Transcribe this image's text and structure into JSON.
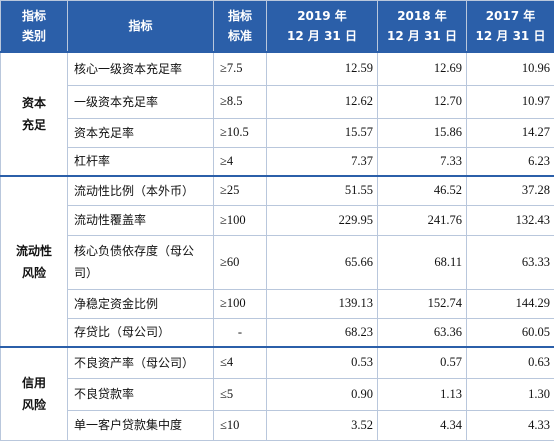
{
  "table": {
    "header": [
      "指标\n类别",
      "指标",
      "指标\n标准",
      "2019 年\n12 月 31 日",
      "2018 年\n12 月 31 日",
      "2017 年\n12 月 31 日"
    ],
    "groups": [
      {
        "label": "资本\n充足",
        "rows": [
          [
            "核心一级资本充足率",
            "≥7.5",
            "12.59",
            "12.69",
            "10.96"
          ],
          [
            "一级资本充足率",
            "≥8.5",
            "12.62",
            "12.70",
            "10.97"
          ],
          [
            "资本充足率",
            "≥10.5",
            "15.57",
            "15.86",
            "14.27"
          ],
          [
            "杠杆率",
            "≥4",
            "7.37",
            "7.33",
            "6.23"
          ]
        ]
      },
      {
        "label": "流动性\n风险",
        "rows": [
          [
            "流动性比例（本外币）",
            "≥25",
            "51.55",
            "46.52",
            "37.28"
          ],
          [
            "流动性覆盖率",
            "≥100",
            "229.95",
            "241.76",
            "132.43"
          ],
          [
            "核心负债依存度（母公司）",
            "≥60",
            "65.66",
            "68.11",
            "63.33"
          ],
          [
            "净稳定资金比例",
            "≥100",
            "139.13",
            "152.74",
            "144.29"
          ],
          [
            "存贷比（母公司）",
            "-",
            "68.23",
            "63.36",
            "60.05"
          ]
        ]
      },
      {
        "label": "信用\n风险",
        "rows": [
          [
            "不良资产率（母公司）",
            "≤4",
            "0.53",
            "0.57",
            "0.63"
          ],
          [
            "不良贷款率",
            "≤5",
            "0.90",
            "1.13",
            "1.30"
          ],
          [
            "单一客户贷款集中度",
            "≤10",
            "3.52",
            "4.34",
            "4.33"
          ]
        ]
      }
    ]
  }
}
